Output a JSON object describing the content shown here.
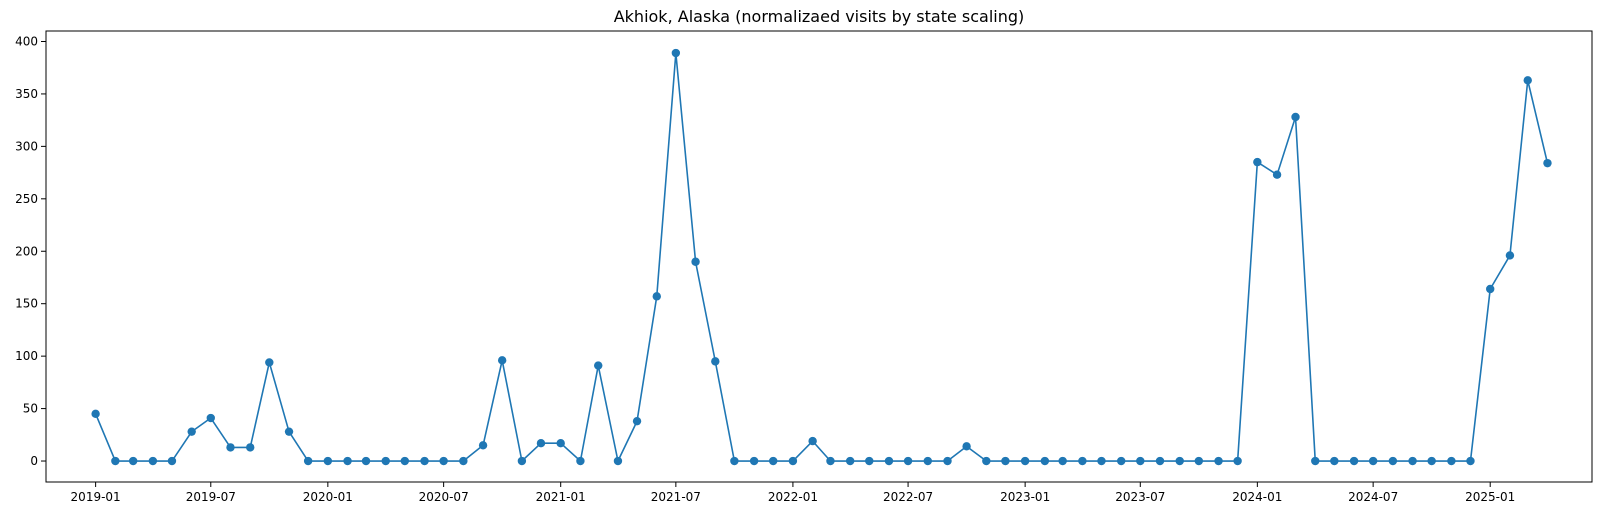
{
  "chart_data": {
    "type": "line",
    "title": "Akhiok, Alaska (normalizaed visits by state scaling)",
    "xlabel": "",
    "ylabel": "",
    "x_axis_type": "date",
    "grid": false,
    "ylim": [
      -20,
      410
    ],
    "xlim": [
      "2018-10-15",
      "2025-06-10"
    ],
    "x_ticks": [
      "2019-01",
      "2019-07",
      "2020-01",
      "2020-07",
      "2021-01",
      "2021-07",
      "2022-01",
      "2022-07",
      "2023-01",
      "2023-07",
      "2024-01",
      "2024-07",
      "2025-01"
    ],
    "y_ticks": [
      0,
      50,
      100,
      150,
      200,
      250,
      300,
      350,
      400
    ],
    "colors": {
      "series": "#1f77b4"
    },
    "marker": "circle",
    "series": [
      {
        "x": [
          "2019-01",
          "2019-02",
          "2019-03",
          "2019-04",
          "2019-05",
          "2019-06",
          "2019-07",
          "2019-08",
          "2019-09",
          "2019-10",
          "2019-11",
          "2019-12",
          "2020-01",
          "2020-02",
          "2020-03",
          "2020-04",
          "2020-05",
          "2020-06",
          "2020-07",
          "2020-08",
          "2020-09",
          "2020-10",
          "2020-11",
          "2020-12",
          "2021-01",
          "2021-02",
          "2021-03",
          "2021-04",
          "2021-05",
          "2021-06",
          "2021-07",
          "2021-08",
          "2021-09",
          "2021-10",
          "2021-11",
          "2021-12",
          "2022-01",
          "2022-02",
          "2022-03",
          "2022-04",
          "2022-05",
          "2022-06",
          "2022-07",
          "2022-08",
          "2022-09",
          "2022-10",
          "2022-11",
          "2022-12",
          "2023-01",
          "2023-02",
          "2023-03",
          "2023-04",
          "2023-05",
          "2023-06",
          "2023-07",
          "2023-08",
          "2023-09",
          "2023-10",
          "2023-11",
          "2023-12",
          "2024-01",
          "2024-02",
          "2024-03",
          "2024-04",
          "2024-05",
          "2024-06",
          "2024-07",
          "2024-08",
          "2024-09",
          "2024-10",
          "2024-11",
          "2024-12",
          "2025-01",
          "2025-02",
          "2025-03",
          "2025-04"
        ],
        "values": [
          45,
          0,
          0,
          0,
          0,
          28,
          41,
          13,
          13,
          94,
          28,
          0,
          0,
          0,
          0,
          0,
          0,
          0,
          0,
          0,
          15,
          96,
          0,
          17,
          17,
          0,
          91,
          0,
          38,
          157,
          389,
          190,
          95,
          0,
          0,
          0,
          0,
          19,
          0,
          0,
          0,
          0,
          0,
          0,
          0,
          14,
          0,
          0,
          0,
          0,
          0,
          0,
          0,
          0,
          0,
          0,
          0,
          0,
          0,
          0,
          285,
          273,
          328,
          0,
          0,
          0,
          0,
          0,
          0,
          0,
          0,
          0,
          164,
          196,
          363,
          284
        ]
      }
    ]
  }
}
